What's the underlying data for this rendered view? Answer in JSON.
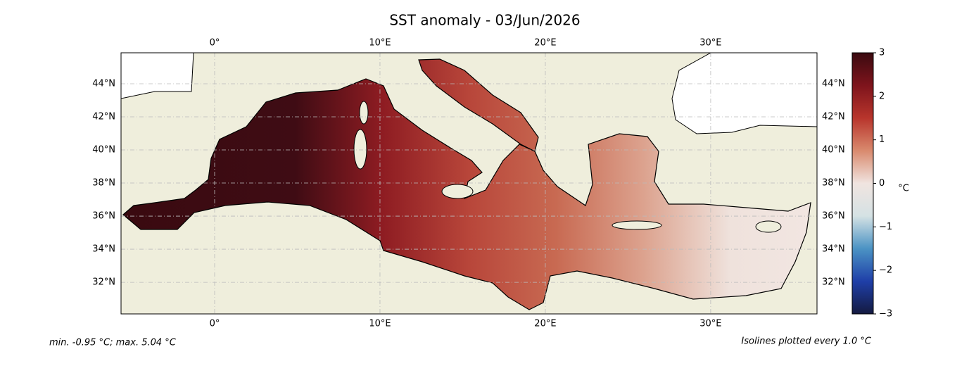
{
  "title": "SST anomaly - 03/Jun/2026",
  "map": {
    "xlim": [
      -5.66,
      36.43
    ],
    "ylim": [
      30.09,
      45.87
    ],
    "xticks": [
      {
        "value": 0,
        "label": "0°"
      },
      {
        "value": 10,
        "label": "10°E"
      },
      {
        "value": 20,
        "label": "20°E"
      },
      {
        "value": 30,
        "label": "30°E"
      }
    ],
    "yticks": [
      {
        "value": 32,
        "label": "32°N"
      },
      {
        "value": 34,
        "label": "34°N"
      },
      {
        "value": 36,
        "label": "36°N"
      },
      {
        "value": 38,
        "label": "38°N"
      },
      {
        "value": 40,
        "label": "40°N"
      },
      {
        "value": 42,
        "label": "42°N"
      },
      {
        "value": 44,
        "label": "44°N"
      }
    ],
    "land_color": "#efeedc",
    "sea_colors": [
      "#3a0a10",
      "#3c0b12",
      "#3f0c14",
      "#8e1c22",
      "#b8463a",
      "#c86a52",
      "#dca28e",
      "#efe2dc",
      "#f2e6e2"
    ]
  },
  "colorbar": {
    "lim": [
      -3,
      3
    ],
    "ticks": [
      {
        "value": -3,
        "label": "−3"
      },
      {
        "value": -2,
        "label": "−2"
      },
      {
        "value": -1,
        "label": "−1"
      },
      0,
      1,
      2,
      3
    ],
    "colors": [
      "#141a40",
      "#1f3fa8",
      "#4b93c4",
      "#d5e2e4",
      "#f0e4e0",
      "#d98a6e",
      "#b8352c",
      "#7e141c",
      "#3a0a10"
    ],
    "label": "°C"
  },
  "footer": {
    "left": "min. -0.95 °C; max. 5.04 °C",
    "right": "Isolines plotted every 1.0 °C"
  }
}
